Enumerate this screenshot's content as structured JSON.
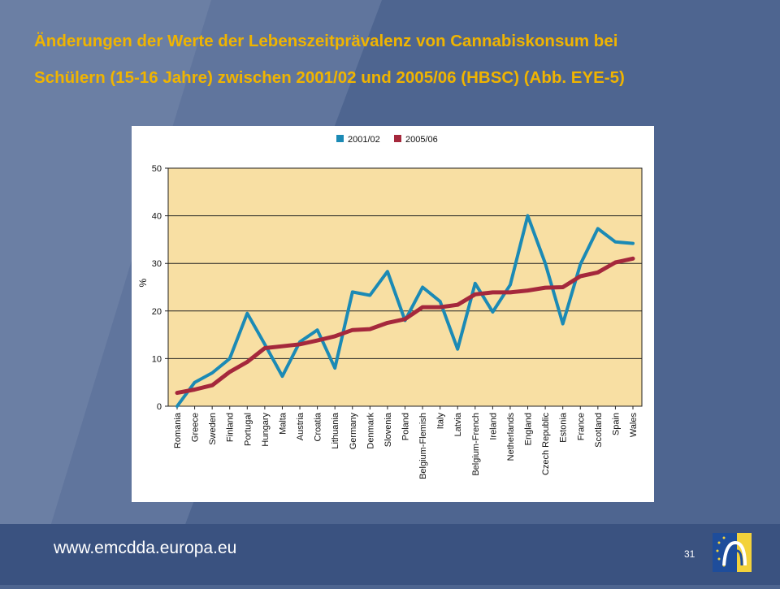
{
  "slide": {
    "title_line1": "Änderungen der Werte der Lebenszeitprävalenz von Cannabiskonsum bei",
    "title_line2": "Schülern (15-16 Jahre) zwischen 2001/02 und 2005/06 (HBSC) (Abb. EYE-5)",
    "footer_url": "www.emcdda.europa.eu",
    "page_number": "31",
    "colors": {
      "background": "#4e6590",
      "title": "#f0b400",
      "plot_area": "#f8dfa3",
      "series_2001": "#1b8ab5",
      "series_2005": "#a5283c"
    },
    "logo_icon": "emcdda-logo-icon"
  },
  "chart_data": {
    "type": "line",
    "title": "",
    "xlabel": "",
    "ylabel": "%",
    "ylim": [
      0,
      50
    ],
    "yticks": [
      0,
      10,
      20,
      30,
      40,
      50
    ],
    "grid": "horizontal",
    "legend_position": "top",
    "categories": [
      "Romania",
      "Greece",
      "Sweden",
      "Finland",
      "Portugal",
      "Hungary",
      "Malta",
      "Austria",
      "Croatia",
      "Lithuania",
      "Germany",
      "Denmark",
      "Slovenia",
      "Poland",
      "Belgium-Flemish",
      "Italy",
      "Latvia",
      "Belgium-French",
      "Ireland",
      "Netherlands",
      "England",
      "Czech Republic",
      "Estonia",
      "France",
      "Scotland",
      "Spain",
      "Wales"
    ],
    "series": [
      {
        "name": "2001/02",
        "color": "#1b8ab5",
        "values": [
          0,
          5,
          7,
          10,
          19.5,
          13,
          6.3,
          13.5,
          16,
          8,
          24,
          23.3,
          28.3,
          18,
          25,
          22,
          12,
          25.8,
          19.8,
          25.5,
          40,
          30,
          17.3,
          29.8,
          37.3,
          34.5,
          34.2
        ]
      },
      {
        "name": "2005/06",
        "color": "#a5283c",
        "values": [
          2.8,
          3.5,
          4.4,
          7.2,
          9.3,
          12.2,
          12.6,
          13,
          13.8,
          14.7,
          16,
          16.2,
          17.5,
          18.3,
          20.8,
          20.8,
          21.3,
          23.5,
          23.9,
          23.9,
          24.3,
          24.9,
          25,
          27.3,
          28.1,
          30.2,
          31
        ]
      }
    ]
  }
}
